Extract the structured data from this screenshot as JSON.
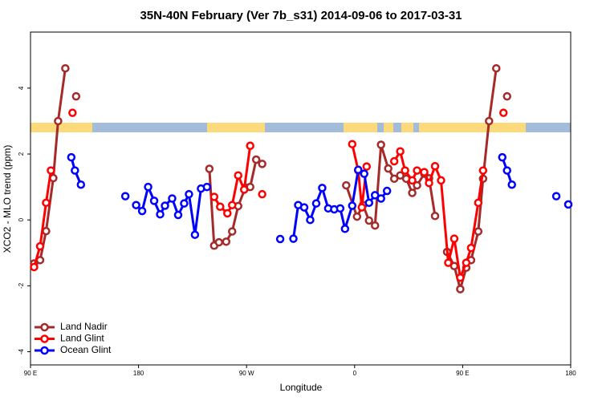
{
  "chart_data": {
    "type": "line",
    "title": "35N-40N February (Ver 7b_s31)   2014-09-06 to 2017-03-31",
    "x_label": "Longitude",
    "y_label": "XCO2 - MLO trend (ppm)",
    "xlim": [
      90,
      540
    ],
    "xticks": [
      {
        "value": 90,
        "label": "90 E"
      },
      {
        "value": 180,
        "label": "180"
      },
      {
        "value": 270,
        "label": "90 W"
      },
      {
        "value": 360,
        "label": "0"
      },
      {
        "value": 450,
        "label": "90 E"
      },
      {
        "value": 540,
        "label": "180"
      }
    ],
    "ylim": [
      -4.4,
      5.7
    ],
    "yticks": [
      -4,
      -2,
      0,
      2,
      4
    ],
    "legend": "bottom-left",
    "series": [
      {
        "name": "Land Nadir",
        "color": "#a52a2a",
        "x": [
          93,
          98,
          103,
          109,
          113,
          119,
          null,
          128,
          null,
          239,
          243,
          247,
          253,
          258,
          263,
          269,
          273,
          278,
          283,
          null,
          353,
          362,
          367,
          372,
          377,
          382,
          388,
          393,
          398,
          403,
          408,
          412,
          418,
          422,
          427,
          null,
          437,
          443,
          448,
          453,
          457,
          463,
          467,
          472,
          478,
          null,
          487
        ],
        "values": [
          -1.32,
          -1.22,
          -0.34,
          1.27,
          3.0,
          4.6,
          null,
          3.75,
          null,
          1.55,
          -0.78,
          -0.68,
          -0.66,
          -0.35,
          0.42,
          0.98,
          1.0,
          1.83,
          1.7,
          null,
          1.05,
          0.1,
          0.45,
          -0.02,
          -0.17,
          2.28,
          1.56,
          1.25,
          1.35,
          1.25,
          0.82,
          1.05,
          1.4,
          1.26,
          0.12,
          null,
          -0.97,
          -1.4,
          -2.1,
          -1.45,
          -1.22,
          -0.35,
          1.25,
          3.0,
          4.6,
          null,
          3.75
        ]
      },
      {
        "name": "Land Glint",
        "color": "#ff0000",
        "x": [
          93,
          98,
          103,
          107,
          null,
          125,
          null,
          243,
          248,
          254,
          258,
          263,
          268,
          273,
          null,
          283,
          null,
          358,
          363,
          366,
          370,
          null,
          393,
          398,
          402,
          408,
          412,
          418,
          422,
          427,
          432,
          438,
          443,
          448,
          453,
          457,
          463,
          467,
          null,
          484
        ],
        "values": [
          -1.43,
          -0.8,
          0.52,
          1.5,
          null,
          3.25,
          null,
          0.7,
          0.4,
          0.2,
          0.45,
          1.35,
          0.92,
          2.25,
          null,
          0.78,
          null,
          2.3,
          1.5,
          0.38,
          1.62,
          null,
          1.78,
          2.08,
          1.5,
          1.2,
          1.5,
          1.45,
          1.12,
          1.63,
          1.2,
          -1.3,
          -0.57,
          -1.75,
          -1.3,
          -0.85,
          0.52,
          1.5,
          null,
          3.25
        ]
      },
      {
        "name": "Ocean Glint",
        "color": "#0000ff",
        "x": [
          124,
          127,
          132,
          null,
          169,
          null,
          178,
          183,
          188,
          193,
          198,
          202,
          208,
          213,
          218,
          222,
          227,
          232,
          237,
          null,
          298,
          null,
          309,
          313,
          318,
          323,
          328,
          333,
          338,
          343,
          348,
          352,
          358,
          363,
          368,
          372,
          377,
          382,
          387,
          null,
          483,
          487,
          491,
          null,
          528,
          null,
          538
        ],
        "values": [
          1.9,
          1.5,
          1.07,
          null,
          0.72,
          null,
          0.45,
          0.27,
          1.0,
          0.58,
          0.17,
          0.43,
          0.65,
          0.15,
          0.5,
          0.78,
          -0.45,
          0.95,
          1.0,
          null,
          -0.58,
          null,
          -0.57,
          0.45,
          0.38,
          0.0,
          0.5,
          0.97,
          0.35,
          0.32,
          0.35,
          -0.27,
          0.43,
          1.52,
          1.4,
          0.52,
          0.75,
          0.65,
          0.88,
          null,
          1.9,
          1.5,
          1.07,
          null,
          0.72,
          null,
          0.47
        ]
      }
    ]
  }
}
